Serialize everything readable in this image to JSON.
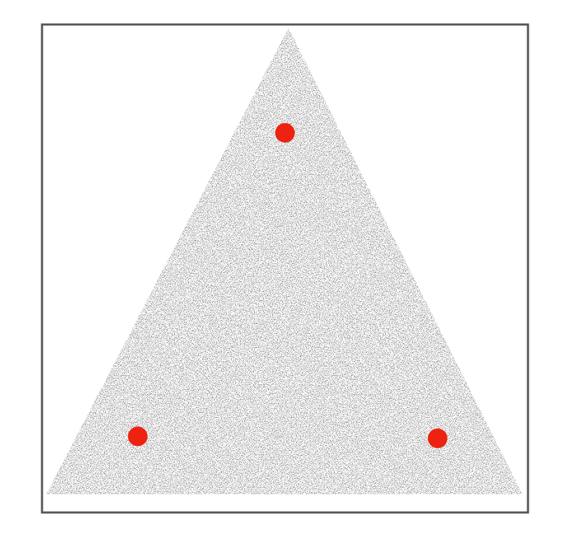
{
  "chart_data": {
    "type": "scatter",
    "x": [
      0.197,
      0.5,
      0.814
    ],
    "values": [
      0.156,
      0.778,
      0.152
    ],
    "color": "#ee2211",
    "xlim": [
      0,
      1
    ],
    "ylim": [
      0,
      1
    ]
  }
}
